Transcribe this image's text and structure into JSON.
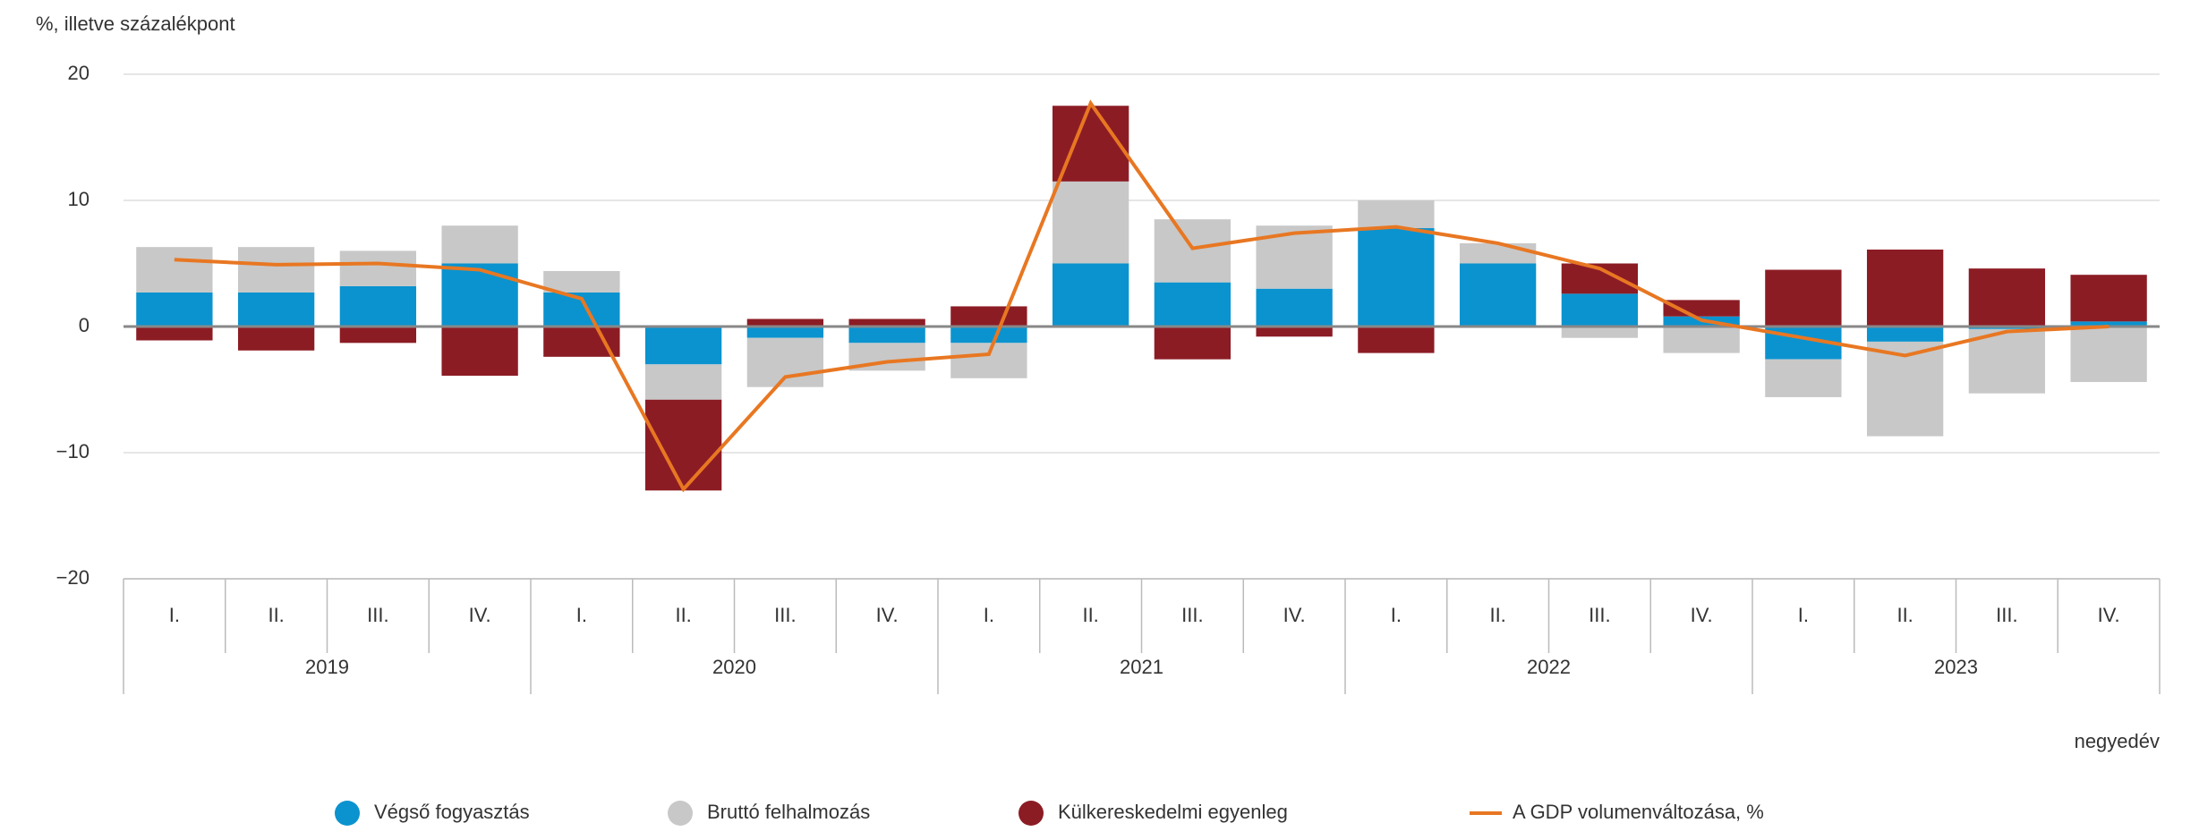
{
  "chart_data": {
    "type": "bar",
    "y_axis_label": "%, illetve százalékpont",
    "x_axis_label": "negyedév",
    "categories": [
      "I.",
      "II.",
      "III.",
      "IV.",
      "I.",
      "II.",
      "III.",
      "IV.",
      "I.",
      "II.",
      "III.",
      "IV.",
      "I.",
      "II.",
      "III.",
      "IV.",
      "I.",
      "II.",
      "III.",
      "IV."
    ],
    "years": [
      "2019",
      "2020",
      "2021",
      "2022",
      "2023"
    ],
    "ylim": [
      -20,
      20
    ],
    "yticks": [
      {
        "value": -20,
        "label": "−20"
      },
      {
        "value": -10,
        "label": "−10"
      },
      0,
      10,
      20
    ],
    "grid": true,
    "stacked": true,
    "series": [
      {
        "name": "Végső fogyasztás",
        "color": "#0b93cf",
        "values": [
          2.7,
          2.7,
          3.2,
          5.0,
          2.7,
          -3.0,
          -0.9,
          -1.3,
          -1.3,
          5.0,
          3.5,
          3.0,
          7.8,
          5.0,
          2.6,
          0.8,
          -2.6,
          -1.2,
          -0.2,
          0.4
        ]
      },
      {
        "name": "Bruttó felhalmozás",
        "color": "#c8c8c8",
        "values": [
          3.6,
          3.6,
          2.8,
          3.0,
          1.7,
          -2.8,
          -3.9,
          -2.2,
          -2.8,
          6.5,
          5.0,
          5.0,
          2.2,
          1.6,
          -0.9,
          -2.1,
          -3.0,
          -7.5,
          -5.1,
          -4.4
        ]
      },
      {
        "name": "Külkereskedelmi egyenleg",
        "color": "#8c1c24",
        "values": [
          -1.1,
          -1.9,
          -1.3,
          -3.9,
          -2.4,
          -7.2,
          0.6,
          0.6,
          1.6,
          6.0,
          -2.6,
          -0.8,
          -2.1,
          0,
          2.4,
          1.3,
          4.5,
          6.1,
          4.6,
          3.7
        ]
      },
      {
        "name": "A GDP volumenváltozása, %",
        "color": "#e87722",
        "type": "line",
        "values": [
          5.3,
          4.9,
          5.0,
          4.5,
          2.2,
          -12.9,
          -4.0,
          -2.8,
          -2.2,
          17.7,
          6.2,
          7.4,
          7.9,
          6.6,
          4.6,
          0.5,
          -0.9,
          -2.3,
          -0.4,
          0.0
        ]
      }
    ]
  }
}
